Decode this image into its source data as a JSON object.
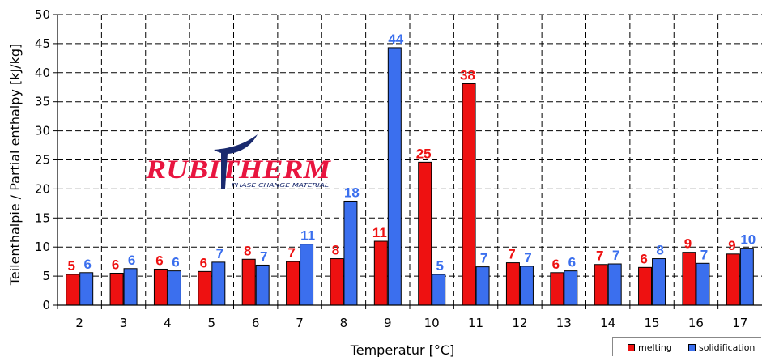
{
  "chart_data": {
    "type": "bar",
    "xlabel": "Temperatur [°C]",
    "ylabel": "Teilenthalpie / Partial enthalpy [kJ/kg]",
    "ylim": [
      0,
      50
    ],
    "yticks": [
      0,
      5,
      10,
      15,
      20,
      25,
      30,
      35,
      40,
      45,
      50
    ],
    "grid": true,
    "legend_position": "bottom-right",
    "categories": [
      "2",
      "3",
      "4",
      "5",
      "6",
      "7",
      "8",
      "9",
      "10",
      "11",
      "12",
      "13",
      "14",
      "15",
      "16",
      "17"
    ],
    "series": [
      {
        "name": "melting",
        "color": "#ee1111",
        "values": [
          5.3,
          5.5,
          6.2,
          5.8,
          7.9,
          7.5,
          8.0,
          11.0,
          24.6,
          38.1,
          7.3,
          5.6,
          7.0,
          6.5,
          9.1,
          8.8
        ],
        "labels": [
          "5",
          "6",
          "6",
          "6",
          "8",
          "7",
          "8",
          "11",
          "25",
          "38",
          "7",
          "6",
          "7",
          "6",
          "9",
          "9"
        ]
      },
      {
        "name": "solidification",
        "color": "#3b6fee",
        "values": [
          5.6,
          6.3,
          5.9,
          7.4,
          6.9,
          10.5,
          17.9,
          44.3,
          5.3,
          6.6,
          6.7,
          5.9,
          7.1,
          8.0,
          7.2,
          9.8
        ],
        "labels": [
          "6",
          "6",
          "6",
          "7",
          "7",
          "11",
          "18",
          "44",
          "5",
          "7",
          "7",
          "6",
          "7",
          "8",
          "7",
          "10"
        ]
      }
    ]
  },
  "logo": {
    "name": "RUBITHERM",
    "tagline": "PHASE CHANGE MATERIAL",
    "color": "#e8153f",
    "accent_color": "#1a2a6e"
  }
}
